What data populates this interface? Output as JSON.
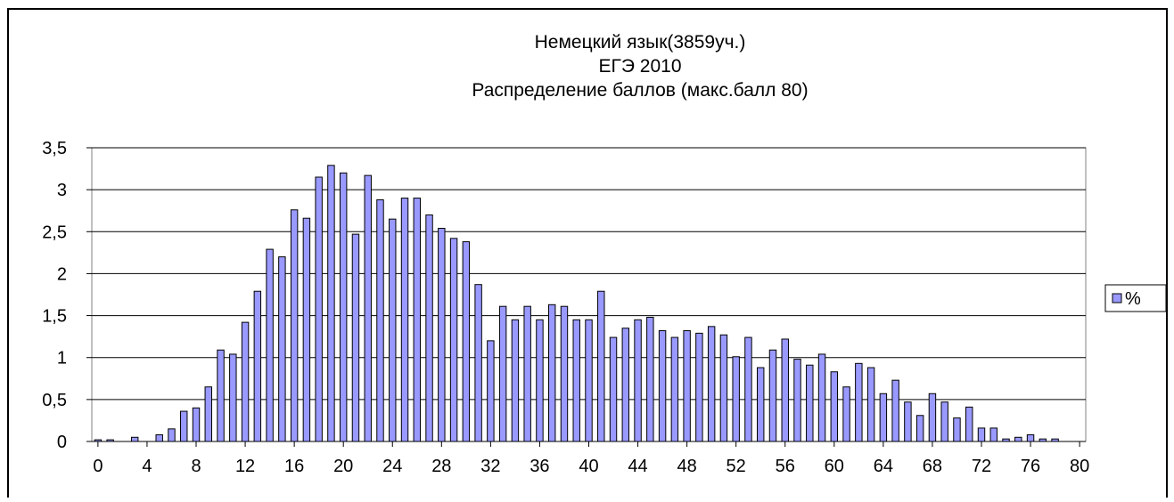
{
  "chart_data": {
    "type": "bar",
    "title": [
      "Немецкий язык(3859уч.)",
      "ЕГЭ 2010",
      "Распределение баллов (макс.балл 80)"
    ],
    "categories": [
      0,
      null,
      null,
      null,
      4,
      null,
      null,
      null,
      8,
      null,
      null,
      null,
      12,
      null,
      null,
      null,
      16,
      null,
      null,
      null,
      20,
      null,
      null,
      null,
      24,
      null,
      null,
      null,
      28,
      null,
      null,
      null,
      32,
      null,
      null,
      null,
      36,
      null,
      null,
      null,
      40,
      null,
      null,
      null,
      44,
      null,
      null,
      null,
      48,
      null,
      null,
      null,
      52,
      null,
      null,
      null,
      56,
      null,
      null,
      null,
      60,
      null,
      null,
      null,
      64,
      null,
      null,
      null,
      68,
      null,
      null,
      null,
      72,
      null,
      null,
      null,
      76,
      null,
      null,
      null,
      80
    ],
    "series": [
      {
        "name": "%",
        "color": "#9999ff",
        "values": [
          0.02,
          0.02,
          0,
          0.05,
          0,
          0.08,
          0.15,
          0.36,
          0.4,
          0.65,
          1.09,
          1.04,
          1.42,
          1.79,
          2.29,
          2.2,
          2.76,
          2.66,
          3.15,
          3.29,
          3.2,
          2.47,
          3.17,
          2.88,
          2.65,
          2.9,
          2.9,
          2.7,
          2.54,
          2.42,
          2.38,
          1.87,
          1.2,
          1.61,
          1.45,
          1.61,
          1.45,
          1.63,
          1.61,
          1.45,
          1.45,
          1.79,
          1.24,
          1.35,
          1.45,
          1.48,
          1.32,
          1.24,
          1.32,
          1.29,
          1.37,
          1.27,
          1.01,
          1.24,
          0.88,
          1.09,
          1.22,
          0.98,
          0.91,
          1.04,
          0.83,
          0.65,
          0.93,
          0.88,
          0.57,
          0.73,
          0.47,
          0.31,
          0.57,
          0.47,
          0.28,
          0.41,
          0.16,
          0.16,
          0.03,
          0.05,
          0.08,
          0.03,
          0.03,
          0,
          0
        ]
      }
    ],
    "ylim": [
      0,
      3.5
    ],
    "yticks": [
      0,
      {
        "value": 0.5,
        "label": "0,5"
      },
      1,
      {
        "value": 1.5,
        "label": "1,5"
      },
      2,
      {
        "value": 2.5,
        "label": "2,5"
      },
      3,
      {
        "value": 3.5,
        "label": "3,5"
      }
    ],
    "grid": true,
    "legend": "right"
  }
}
